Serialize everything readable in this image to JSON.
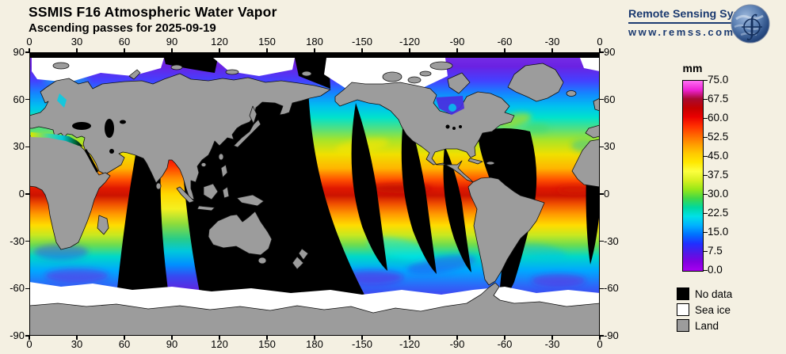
{
  "header": {
    "title": "SSMIS F16 Atmospheric Water Vapor",
    "subtitle": "Ascending passes for 2025-09-19"
  },
  "branding": {
    "name": "Remote Sensing Systems",
    "url": "www.remss.com",
    "globe_icon": "earth-integral-logo",
    "color": "#1b3a70"
  },
  "axes": {
    "lon_labels": [
      "0",
      "30",
      "60",
      "90",
      "120",
      "150",
      "180",
      "-150",
      "-120",
      "-90",
      "-60",
      "-30",
      "0"
    ],
    "lat_labels": [
      "90",
      "60",
      "30",
      "0",
      "-30",
      "-60",
      "-90"
    ]
  },
  "colorbar": {
    "unit": "mm",
    "min": 0,
    "max": 75,
    "tick_labels": [
      "75.0",
      "67.5",
      "60.0",
      "52.5",
      "45.0",
      "37.5",
      "30.0",
      "22.5",
      "15.0",
      "7.5",
      "0.0"
    ],
    "gradient_top_to_bottom": [
      "#ff6df2",
      "#ee22d4",
      "#a80a30",
      "#c40000",
      "#ea0000",
      "#ff2e00",
      "#ff6600",
      "#ff9900",
      "#ffc800",
      "#ffe800",
      "#fcff3e",
      "#d8f020",
      "#98e818",
      "#40d848",
      "#00d8a0",
      "#00e0e8",
      "#00b0ff",
      "#0070ff",
      "#2030ff",
      "#5018e8",
      "#8000e0",
      "#a800f0"
    ]
  },
  "legend": {
    "items": [
      {
        "label": "No data",
        "color": "#000000"
      },
      {
        "label": "Sea ice",
        "color": "#ffffff"
      },
      {
        "label": "Land",
        "color": "#9c9c9c"
      }
    ]
  },
  "map": {
    "description": "World map 0-360 longitude, water vapor over ocean; black = no data swath gaps, white = sea ice, gray = land",
    "colors": {
      "background": "#f4f0e2",
      "land": "#9c9c9c",
      "no_data": "#000000",
      "sea_ice": "#ffffff",
      "coast_outline": "#111111",
      "itcz_red": "#cc1400",
      "subtropic_yellow": "#f0e000",
      "midlat_cyan": "#00d8c8",
      "polar_purple": "#7a30e8"
    }
  }
}
